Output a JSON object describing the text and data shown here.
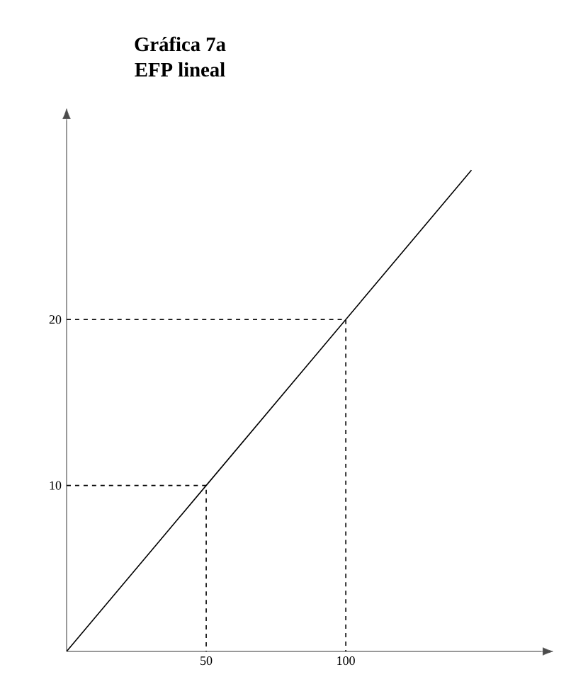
{
  "chart_data": {
    "type": "line",
    "title": "Gráfica 7a",
    "subtitle": "EFP lineal",
    "xlim": [
      0,
      170
    ],
    "ylim": [
      0,
      32
    ],
    "xticks": [
      50,
      100
    ],
    "yticks": [
      10,
      20
    ],
    "grid": false,
    "marker": "none",
    "series": [
      {
        "color": "#000000",
        "line_style": "solid",
        "x": [
          0,
          50,
          100,
          145
        ],
        "values": [
          0,
          10,
          20,
          29
        ]
      },
      {
        "color": "#000000",
        "line_style": "dashed",
        "x": [
          0,
          50,
          50
        ],
        "values": [
          10,
          10,
          0
        ]
      },
      {
        "color": "#000000",
        "line_style": "dashed",
        "x": [
          0,
          100,
          100
        ],
        "values": [
          20,
          20,
          0
        ]
      }
    ]
  }
}
